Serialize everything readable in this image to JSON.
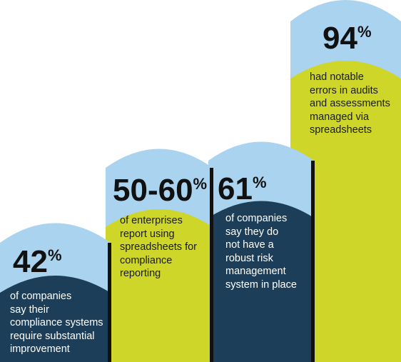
{
  "columns": [
    {
      "stat": {
        "number": "42",
        "unit": "%"
      },
      "lines": [
        "of companies",
        "say their",
        "compliance systems",
        "require substantial",
        "improvement"
      ]
    },
    {
      "stat": {
        "number": "50-60",
        "unit": "%"
      },
      "lines": [
        "of enterprises",
        "report using",
        "spreadsheets for",
        "compliance",
        "reporting"
      ]
    },
    {
      "stat": {
        "number": "61",
        "unit": "%"
      },
      "lines": [
        "of companies",
        "say they do",
        "not have a",
        "robust risk",
        "management",
        "system in place"
      ]
    },
    {
      "stat": {
        "number": "94",
        "unit": "%"
      },
      "lines": [
        "had notable",
        "errors in audits",
        "and assessments",
        "managed via",
        "spreadsheets"
      ]
    }
  ]
}
